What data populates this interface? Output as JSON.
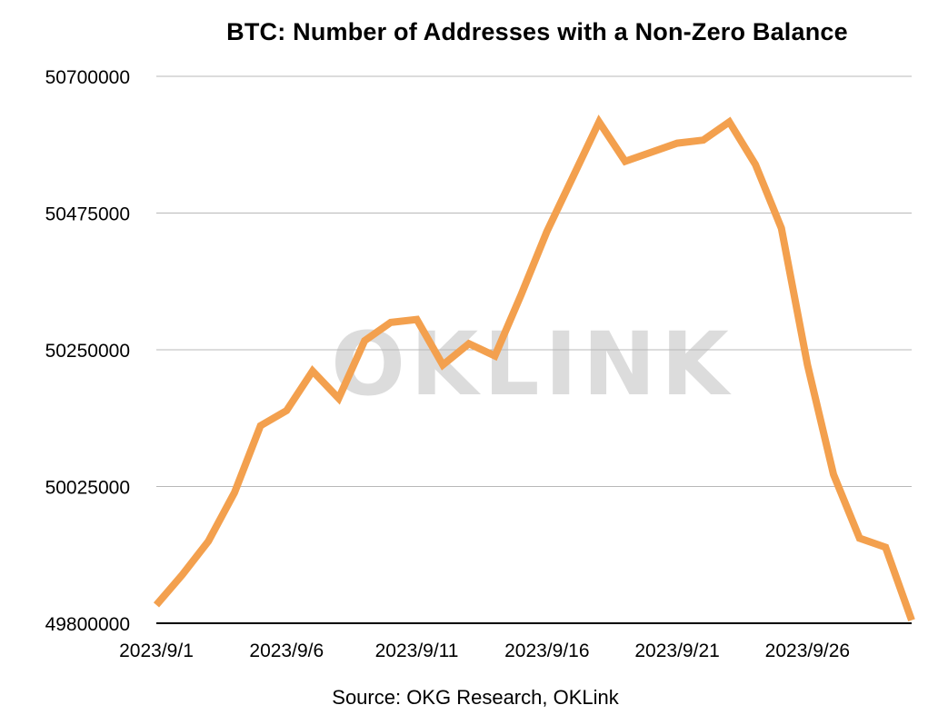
{
  "chart_data": {
    "type": "line",
    "title": "BTC: Number of Addresses with a Non-Zero Balance",
    "source": "Source: OKG Research, OKLink",
    "watermark": "OKLINK",
    "xlabel": "",
    "ylabel": "",
    "x": [
      "2023/9/1",
      "2023/9/2",
      "2023/9/3",
      "2023/9/4",
      "2023/9/5",
      "2023/9/6",
      "2023/9/7",
      "2023/9/8",
      "2023/9/9",
      "2023/9/10",
      "2023/9/11",
      "2023/9/12",
      "2023/9/13",
      "2023/9/14",
      "2023/9/15",
      "2023/9/16",
      "2023/9/17",
      "2023/9/18",
      "2023/9/19",
      "2023/9/20",
      "2023/9/21",
      "2023/9/22",
      "2023/9/23",
      "2023/9/24",
      "2023/9/25",
      "2023/9/26",
      "2023/9/27",
      "2023/9/28",
      "2023/9/29",
      "2023/9/30"
    ],
    "xticks": [
      "2023/9/1",
      "2023/9/6",
      "2023/9/11",
      "2023/9/16",
      "2023/9/21",
      "2023/9/26"
    ],
    "yticks": [
      "49800000",
      "50025000",
      "50250000",
      "50475000",
      "50700000"
    ],
    "ylim": [
      49800000,
      50700000
    ],
    "series": [
      {
        "name": "",
        "color": "#f3a04e",
        "values": [
          49830000,
          49880000,
          49935000,
          50015000,
          50125000,
          50150000,
          50215000,
          50170000,
          50265000,
          50295000,
          50300000,
          50225000,
          50260000,
          50240000,
          50340000,
          50445000,
          50535000,
          50625000,
          50560000,
          50575000,
          50590000,
          50595000,
          50625000,
          50555000,
          50450000,
          50225000,
          50045000,
          49940000,
          49925000,
          49805000
        ]
      }
    ],
    "line_width_note": "thick line",
    "grid": "horizontal",
    "legend": "none"
  }
}
